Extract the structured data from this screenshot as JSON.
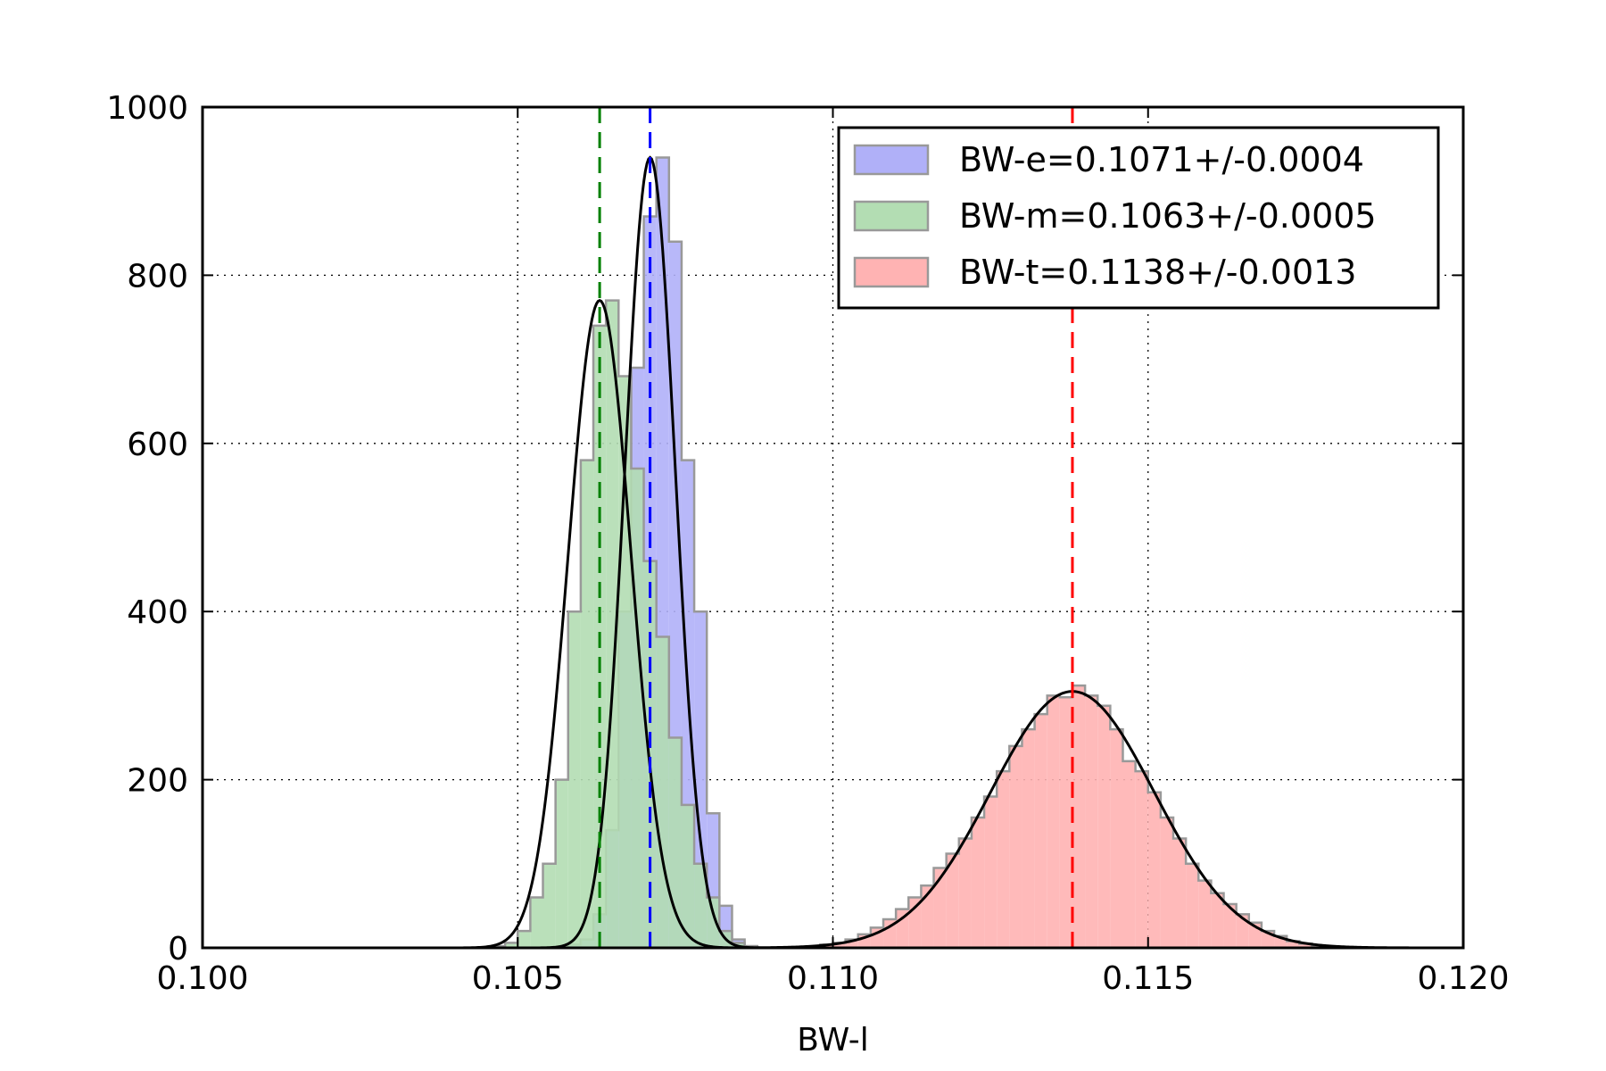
{
  "chart_data": {
    "type": "histogram",
    "xlabel": "BW-l",
    "ylabel": "",
    "title": "",
    "xlim": [
      0.1,
      0.12
    ],
    "ylim": [
      0,
      1000
    ],
    "xticks": [
      0.1,
      0.105,
      0.11,
      0.115,
      0.12
    ],
    "xtick_labels": [
      "0.100",
      "0.105",
      "0.110",
      "0.115",
      "0.120"
    ],
    "yticks": [
      0,
      200,
      400,
      600,
      800,
      1000
    ],
    "ytick_labels": [
      "0",
      "200",
      "400",
      "600",
      "800",
      "1000"
    ],
    "grid": true,
    "legend_position": "top-right",
    "series": [
      {
        "name": "BW-e=0.1071+/-0.0004",
        "color": "#b0b0f8",
        "line_color": "#0000ff",
        "mean": 0.1071,
        "sigma": 0.0004,
        "peak": 940,
        "bin_start": 0.1056,
        "bin_width": 0.0002,
        "counts": [
          0,
          4,
          10,
          40,
          140,
          400,
          690,
          870,
          940,
          840,
          580,
          400,
          160,
          50,
          10,
          2
        ]
      },
      {
        "name": "BW-m=0.1063+/-0.0005",
        "color": "#b3ddb3",
        "line_color": "#008000",
        "mean": 0.1063,
        "sigma": 0.0005,
        "peak": 770,
        "bin_start": 0.1046,
        "bin_width": 0.0002,
        "counts": [
          2,
          6,
          20,
          60,
          100,
          200,
          400,
          580,
          740,
          770,
          680,
          570,
          460,
          370,
          250,
          170,
          100,
          60,
          20,
          6,
          2
        ]
      },
      {
        "name": "BW-t=0.1138+/-0.0013",
        "color": "#ffb3b3",
        "line_color": "#ff0000",
        "mean": 0.1138,
        "sigma": 0.0013,
        "peak": 305,
        "bin_start": 0.1096,
        "bin_width": 0.0002,
        "counts": [
          2,
          4,
          6,
          10,
          16,
          24,
          34,
          46,
          60,
          74,
          95,
          112,
          130,
          155,
          180,
          210,
          240,
          260,
          278,
          300,
          298,
          312,
          300,
          288,
          260,
          222,
          210,
          185,
          155,
          130,
          100,
          80,
          65,
          52,
          40,
          30,
          20,
          14,
          8,
          5,
          3,
          2
        ]
      }
    ]
  }
}
